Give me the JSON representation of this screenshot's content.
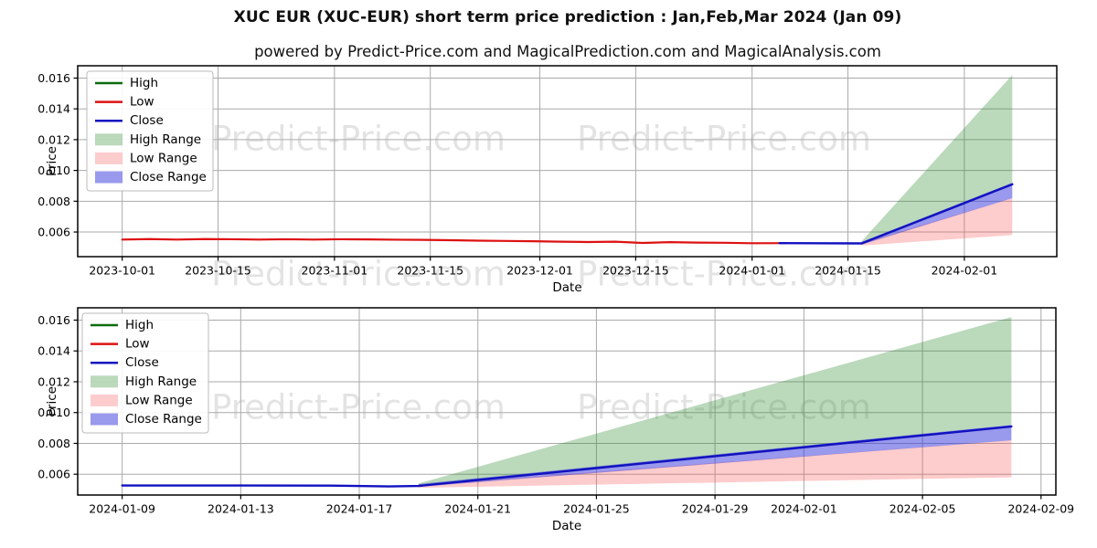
{
  "title": "XUC EUR (XUC-EUR) short term price prediction : Jan,Feb,Mar 2024 (Jan 09)",
  "subtitle": "powered by Predict-Price.com and MagicalPrediction.com and MagicalAnalysis.com",
  "watermark": {
    "text": "Predict-Price.com",
    "color": "rgba(0,0,0,0.11)"
  },
  "colors": {
    "high": "#0b6b0b",
    "low": "#dd1111",
    "close": "#1111c0",
    "high_range": "rgba(44,138,44,0.32)",
    "low_range": "rgba(250,85,85,0.30)",
    "close_range": "rgba(52,52,220,0.50)",
    "grid": "#aaaaaa",
    "spine": "#000000",
    "tick_text": "#000000"
  },
  "legend": [
    {
      "label": "High",
      "swatch": "line",
      "color_key": "high"
    },
    {
      "label": "Low",
      "swatch": "line",
      "color_key": "low"
    },
    {
      "label": "Close",
      "swatch": "line",
      "color_key": "close"
    },
    {
      "label": "High Range",
      "swatch": "fill",
      "color_key": "high_range"
    },
    {
      "label": "Low Range",
      "swatch": "fill",
      "color_key": "low_range"
    },
    {
      "label": "Close Range",
      "swatch": "fill",
      "color_key": "close_range"
    }
  ],
  "chart_data": [
    {
      "type": "line",
      "name": "history-and-forecast",
      "xlabel": "Date",
      "ylabel": "Price",
      "grid": true,
      "legend_position": "upper-left",
      "ylim": [
        0.0044,
        0.0168
      ],
      "yticks": [
        0.006,
        0.008,
        0.01,
        0.012,
        0.014,
        0.016
      ],
      "ytick_labels": [
        "0.006",
        "0.008",
        "0.010",
        "0.012",
        "0.014",
        "0.016"
      ],
      "x_domain": [
        "2023-09-24T12:00Z",
        "2024-02-14T12:00Z"
      ],
      "xticks": [
        "2023-10-01",
        "2023-10-15",
        "2023-11-01",
        "2023-11-15",
        "2023-12-01",
        "2023-12-15",
        "2024-01-01",
        "2024-01-15",
        "2024-02-01"
      ],
      "series": [
        {
          "name": "Low",
          "color_key": "low",
          "width": 2.2,
          "points": [
            [
              "2023-10-01",
              0.00551
            ],
            [
              "2023-10-05",
              0.00554
            ],
            [
              "2023-10-09",
              0.00551
            ],
            [
              "2023-10-13",
              0.00554
            ],
            [
              "2023-10-17",
              0.00553
            ],
            [
              "2023-10-21",
              0.00551
            ],
            [
              "2023-10-25",
              0.00553
            ],
            [
              "2023-10-29",
              0.00551
            ],
            [
              "2023-11-02",
              0.00553
            ],
            [
              "2023-11-06",
              0.00552
            ],
            [
              "2023-11-10",
              0.0055
            ],
            [
              "2023-11-14",
              0.00549
            ],
            [
              "2023-11-18",
              0.00547
            ],
            [
              "2023-11-22",
              0.00544
            ],
            [
              "2023-11-26",
              0.00542
            ],
            [
              "2023-11-30",
              0.0054
            ],
            [
              "2023-12-04",
              0.00537
            ],
            [
              "2023-12-08",
              0.00535
            ],
            [
              "2023-12-12",
              0.00537
            ],
            [
              "2023-12-16",
              0.00529
            ],
            [
              "2023-12-20",
              0.00534
            ],
            [
              "2023-12-24",
              0.00531
            ],
            [
              "2023-12-28",
              0.0053
            ],
            [
              "2024-01-01",
              0.00527
            ],
            [
              "2024-01-06",
              0.00528
            ]
          ]
        },
        {
          "name": "Close",
          "color_key": "close",
          "width": 2.4,
          "points": [
            [
              "2024-01-05",
              0.00528
            ],
            [
              "2024-01-17",
              0.00526
            ],
            [
              "2024-02-08",
              0.0091
            ]
          ]
        }
      ],
      "ranges": [
        {
          "name": "High Range",
          "color_key": "high_range",
          "start": "2024-01-17",
          "end": "2024-02-08",
          "start_top": 0.0054,
          "start_bottom": 0.00522,
          "end_top": 0.0162,
          "end_bottom": 0.0092
        },
        {
          "name": "Low Range",
          "color_key": "low_range",
          "start": "2024-01-17",
          "end": "2024-02-08",
          "start_top": 0.00528,
          "start_bottom": 0.00512,
          "end_top": 0.0082,
          "end_bottom": 0.0058
        },
        {
          "name": "Close Range",
          "color_key": "close_range",
          "start": "2024-01-17",
          "end": "2024-02-08",
          "start_top": 0.00536,
          "start_bottom": 0.00518,
          "end_top": 0.0092,
          "end_bottom": 0.0082
        }
      ]
    },
    {
      "type": "line",
      "name": "forecast-zoom",
      "xlabel": "Date",
      "ylabel": "Price",
      "grid": true,
      "legend_position": "upper-left",
      "ylim": [
        0.00465,
        0.0168
      ],
      "yticks": [
        0.006,
        0.008,
        0.01,
        0.012,
        0.014,
        0.016
      ],
      "ytick_labels": [
        "0.006",
        "0.008",
        "0.010",
        "0.012",
        "0.014",
        "0.016"
      ],
      "x_domain": [
        "2024-01-07T12:00Z",
        "2024-02-09T12:00Z"
      ],
      "xticks": [
        "2024-01-09",
        "2024-01-13",
        "2024-01-17",
        "2024-01-21",
        "2024-01-25",
        "2024-01-29",
        "2024-02-01",
        "2024-02-05",
        "2024-02-09"
      ],
      "series": [
        {
          "name": "Close",
          "color_key": "close",
          "width": 2.4,
          "points": [
            [
              "2024-01-09",
              0.00527
            ],
            [
              "2024-01-13",
              0.00527
            ],
            [
              "2024-01-16",
              0.00526
            ],
            [
              "2024-01-18",
              0.00521
            ],
            [
              "2024-01-19",
              0.00524
            ],
            [
              "2024-02-08",
              0.0091
            ]
          ]
        }
      ],
      "ranges": [
        {
          "name": "High Range",
          "color_key": "high_range",
          "start": "2024-01-19",
          "end": "2024-02-08",
          "start_top": 0.0054,
          "start_bottom": 0.00522,
          "end_top": 0.0162,
          "end_bottom": 0.0092
        },
        {
          "name": "Low Range",
          "color_key": "low_range",
          "start": "2024-01-19",
          "end": "2024-02-08",
          "start_top": 0.00528,
          "start_bottom": 0.00512,
          "end_top": 0.0082,
          "end_bottom": 0.0058
        },
        {
          "name": "Close Range",
          "color_key": "close_range",
          "start": "2024-01-19",
          "end": "2024-02-08",
          "start_top": 0.00536,
          "start_bottom": 0.00518,
          "end_top": 0.0092,
          "end_bottom": 0.0082
        }
      ]
    }
  ]
}
